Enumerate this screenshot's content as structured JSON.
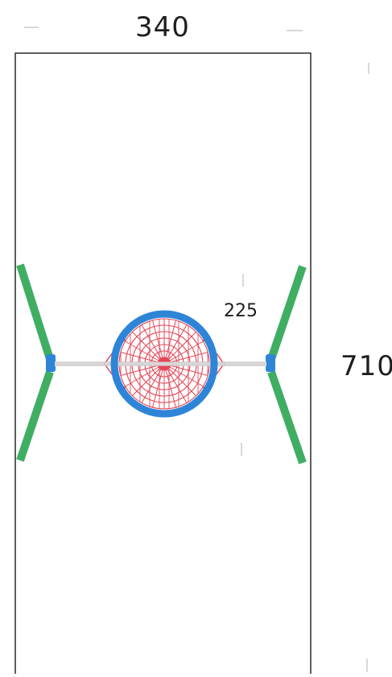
{
  "diagram": {
    "width_dimension": "340",
    "height_dimension": "710",
    "net_diameter": "225"
  },
  "colors": {
    "frame_outline": "#2a2a2a",
    "net_ring": "#2e85d8",
    "net_mesh": "#e24758",
    "arm": "#3fae62",
    "bracket": "#2e85d8",
    "rod": "#d6d6d6"
  },
  "icons": [
    "hoop-net-icon",
    "mounting-bracket-icon"
  ]
}
